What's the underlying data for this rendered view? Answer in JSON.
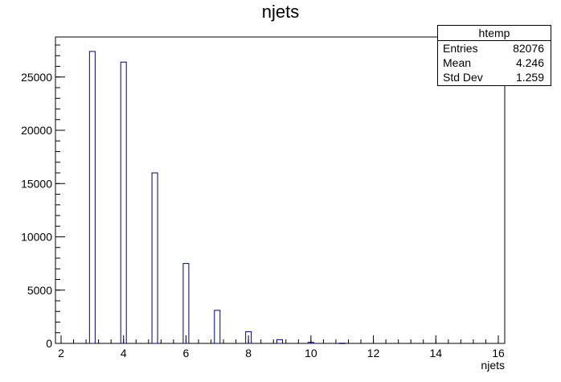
{
  "chart_data": {
    "type": "bar",
    "title": "njets",
    "xlabel": "njets",
    "ylabel": "",
    "xlim": [
      2,
      16
    ],
    "ylim": [
      0,
      28000
    ],
    "x_ticks": [
      2,
      4,
      6,
      8,
      10,
      12,
      14,
      16
    ],
    "y_ticks": [
      0,
      5000,
      10000,
      15000,
      20000,
      25000
    ],
    "bins": [
      {
        "x": 3,
        "value": 27400
      },
      {
        "x": 4,
        "value": 26400
      },
      {
        "x": 5,
        "value": 16000
      },
      {
        "x": 6,
        "value": 7500
      },
      {
        "x": 7,
        "value": 3100
      },
      {
        "x": 8,
        "value": 1100
      },
      {
        "x": 9,
        "value": 350
      },
      {
        "x": 10,
        "value": 100
      },
      {
        "x": 11,
        "value": 20
      }
    ],
    "grid": false,
    "legend": "none",
    "line_color": "#000080"
  },
  "stats": {
    "name": "htemp",
    "entries_label": "Entries",
    "entries_value": "82076",
    "mean_label": "Mean",
    "mean_value": "4.246",
    "stddev_label": "Std Dev",
    "stddev_value": "1.259"
  }
}
